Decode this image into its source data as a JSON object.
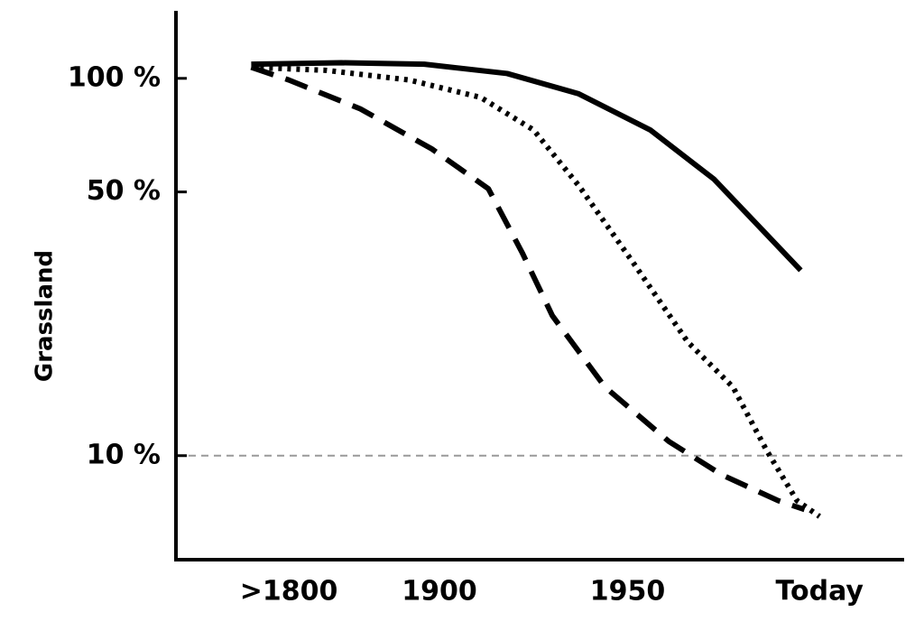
{
  "chart_data": {
    "type": "line",
    "y_label": "Grassland",
    "y_scale": "log",
    "ylim": [
      5.3,
      151
    ],
    "yticks": [
      {
        "value": 100,
        "label": "100 %"
      },
      {
        "value": 50,
        "label": "50 %"
      },
      {
        "value": 10,
        "label": "10 %"
      }
    ],
    "xlim": [
      1830,
      2023
    ],
    "xticks": [
      {
        "value": 1860,
        "label": ">1800"
      },
      {
        "value": 1900,
        "label": "1900"
      },
      {
        "value": 1950,
        "label": "1950"
      },
      {
        "value": 2001,
        "label": "Today"
      }
    ],
    "reference_line": {
      "value": 10,
      "color": "#999999",
      "style": "dashed"
    },
    "series": [
      {
        "color": "#000000",
        "style": "solid",
        "x": [
          1850,
          1874,
          1896,
          1918,
          1937,
          1956,
          1973,
          1996
        ],
        "values": [
          109,
          110,
          109,
          103,
          91,
          73,
          54,
          31
        ]
      },
      {
        "color": "#000000",
        "style": "dotted",
        "x": [
          1850,
          1870,
          1892,
          1911,
          1925,
          1937,
          1951,
          1966,
          1978,
          1987,
          1995,
          2001
        ],
        "values": [
          107,
          105,
          99,
          89,
          73,
          52,
          33,
          20,
          15.2,
          10.3,
          7.6,
          6.9
        ]
      },
      {
        "color": "#000000",
        "style": "dashed",
        "x": [
          1850,
          1860,
          1879,
          1898,
          1913,
          1922,
          1930,
          1944,
          1961,
          1975,
          1990,
          1997
        ],
        "values": [
          107,
          99,
          83,
          65,
          51,
          34.5,
          23.5,
          15.2,
          10.9,
          8.9,
          7.6,
          7.2
        ]
      }
    ]
  }
}
